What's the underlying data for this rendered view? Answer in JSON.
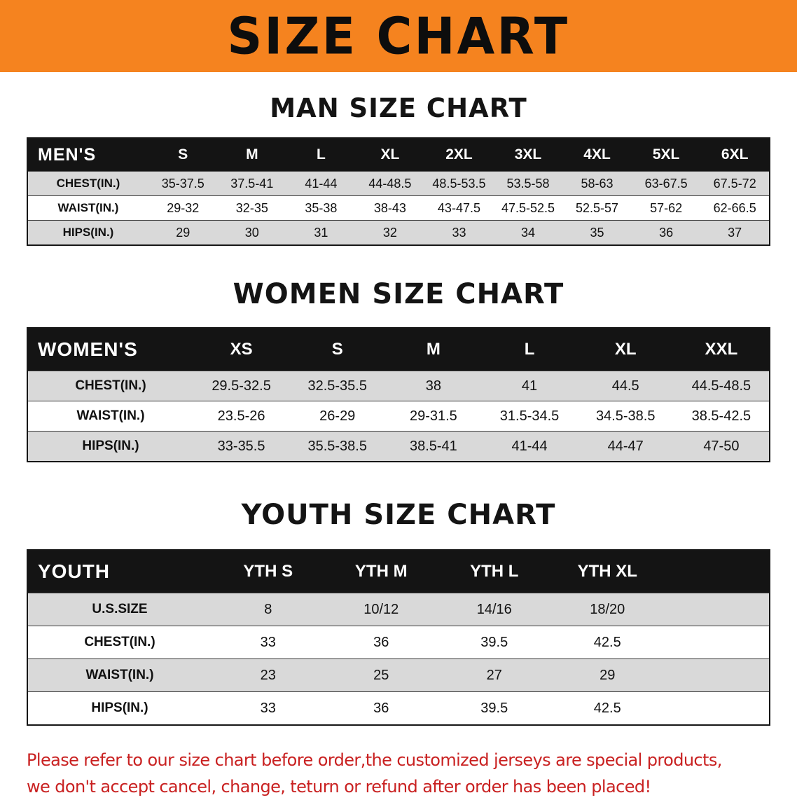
{
  "banner": {
    "title": "SIZE CHART",
    "bg_color": "#f5831f"
  },
  "sections": [
    {
      "id": "men",
      "heading": "MAN SIZE CHART",
      "table": {
        "corner_label": "MEN'S",
        "columns": [
          "S",
          "M",
          "L",
          "XL",
          "2XL",
          "3XL",
          "4XL",
          "5XL",
          "6XL"
        ],
        "rows": [
          {
            "label": "CHEST(IN.)",
            "values": [
              "35-37.5",
              "37.5-41",
              "41-44",
              "44-48.5",
              "48.5-53.5",
              "53.5-58",
              "58-63",
              "63-67.5",
              "67.5-72"
            ]
          },
          {
            "label": "WAIST(IN.)",
            "values": [
              "29-32",
              "32-35",
              "35-38",
              "38-43",
              "43-47.5",
              "47.5-52.5",
              "52.5-57",
              "57-62",
              "62-66.5"
            ]
          },
          {
            "label": "HIPS(IN.)",
            "values": [
              "29",
              "30",
              "31",
              "32",
              "33",
              "34",
              "35",
              "36",
              "37"
            ]
          }
        ]
      }
    },
    {
      "id": "women",
      "heading": "WOMEN SIZE CHART",
      "table": {
        "corner_label": "WOMEN'S",
        "columns": [
          "XS",
          "S",
          "M",
          "L",
          "XL",
          "XXL"
        ],
        "rows": [
          {
            "label": "CHEST(IN.)",
            "values": [
              "29.5-32.5",
              "32.5-35.5",
              "38",
              "41",
              "44.5",
              "44.5-48.5"
            ]
          },
          {
            "label": "WAIST(IN.)",
            "values": [
              "23.5-26",
              "26-29",
              "29-31.5",
              "31.5-34.5",
              "34.5-38.5",
              "38.5-42.5"
            ]
          },
          {
            "label": "HIPS(IN.)",
            "values": [
              "33-35.5",
              "35.5-38.5",
              "38.5-41",
              "41-44",
              "44-47",
              "47-50"
            ]
          }
        ]
      }
    },
    {
      "id": "youth",
      "heading": "YOUTH SIZE CHART",
      "table": {
        "corner_label": "YOUTH",
        "columns": [
          "YTH S",
          "YTH M",
          "YTH L",
          "YTH XL"
        ],
        "rows": [
          {
            "label": "U.S.SIZE",
            "values": [
              "8",
              "10/12",
              "14/16",
              "18/20"
            ]
          },
          {
            "label": "CHEST(IN.)",
            "values": [
              "33",
              "36",
              "39.5",
              "42.5"
            ]
          },
          {
            "label": "WAIST(IN.)",
            "values": [
              "23",
              "25",
              "27",
              "29"
            ]
          },
          {
            "label": "HIPS(IN.)",
            "values": [
              "33",
              "36",
              "39.5",
              "42.5"
            ]
          }
        ]
      }
    }
  ],
  "footnote": {
    "color": "#c92121",
    "lines": [
      "Please refer to our size chart before order,the customized jerseys are special products,",
      "we don't accept cancel, change, teturn or refund after order has been placed!"
    ]
  }
}
